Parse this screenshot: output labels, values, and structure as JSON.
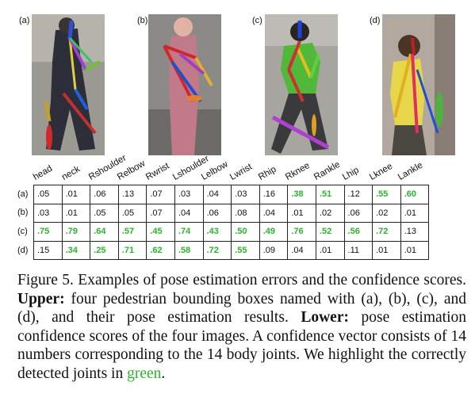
{
  "figure": {
    "panel_labels": [
      "(a)",
      "(b)",
      "(c)",
      "(d)"
    ],
    "joints": [
      "head",
      "neck",
      "Rshoulder",
      "Relbow",
      "Rwrist",
      "Lshoulder",
      "Lelbow",
      "Lwrist",
      "Rhip",
      "Rknee",
      "Rankle",
      "Lhip",
      "Lknee",
      "Lankle"
    ],
    "rows": [
      {
        "label": "(a)",
        "values": [
          ".05",
          ".01",
          ".06",
          ".13",
          ".07",
          ".03",
          ".04",
          ".03",
          ".16",
          ".38",
          ".51",
          ".12",
          ".55",
          ".60"
        ],
        "correct": [
          false,
          false,
          false,
          false,
          false,
          false,
          false,
          false,
          false,
          true,
          true,
          false,
          true,
          true
        ]
      },
      {
        "label": "(b)",
        "values": [
          ".03",
          ".01",
          ".05",
          ".05",
          ".07",
          ".04",
          ".06",
          ".08",
          ".04",
          ".01",
          ".02",
          ".06",
          ".02",
          ".01"
        ],
        "correct": [
          false,
          false,
          false,
          false,
          false,
          false,
          false,
          false,
          false,
          false,
          false,
          false,
          false,
          false
        ]
      },
      {
        "label": "(c)",
        "values": [
          ".75",
          ".79",
          ".64",
          ".57",
          ".45",
          ".74",
          ".43",
          ".50",
          ".49",
          ".76",
          ".52",
          ".56",
          ".72",
          ".13"
        ],
        "correct": [
          true,
          true,
          true,
          true,
          true,
          true,
          true,
          true,
          true,
          true,
          true,
          true,
          true,
          false
        ]
      },
      {
        "label": "(d)",
        "values": [
          ".15",
          ".34",
          ".25",
          ".71",
          ".62",
          ".58",
          ".72",
          ".55",
          ".09",
          ".04",
          ".01",
          ".11",
          ".01",
          ".01"
        ],
        "correct": [
          false,
          true,
          true,
          true,
          true,
          true,
          true,
          true,
          false,
          false,
          false,
          false,
          false,
          false
        ]
      }
    ],
    "highlight_color": "#2ab52a"
  },
  "caption": {
    "prefix": "Figure 5. Examples of pose estimation errors and the confidence scores. ",
    "upper_label": "Upper:",
    "upper_text": " four pedestrian bounding boxes named with (a), (b), (c), and (d), and their pose estimation results. ",
    "lower_label": "Lower:",
    "lower_text": " pose estimation confidence scores of the four images.  A confidence vector consists of 14 numbers corresponding to the 14 body joints. We highlight the correctly detected joints in ",
    "green_word": "green",
    "suffix": "."
  }
}
